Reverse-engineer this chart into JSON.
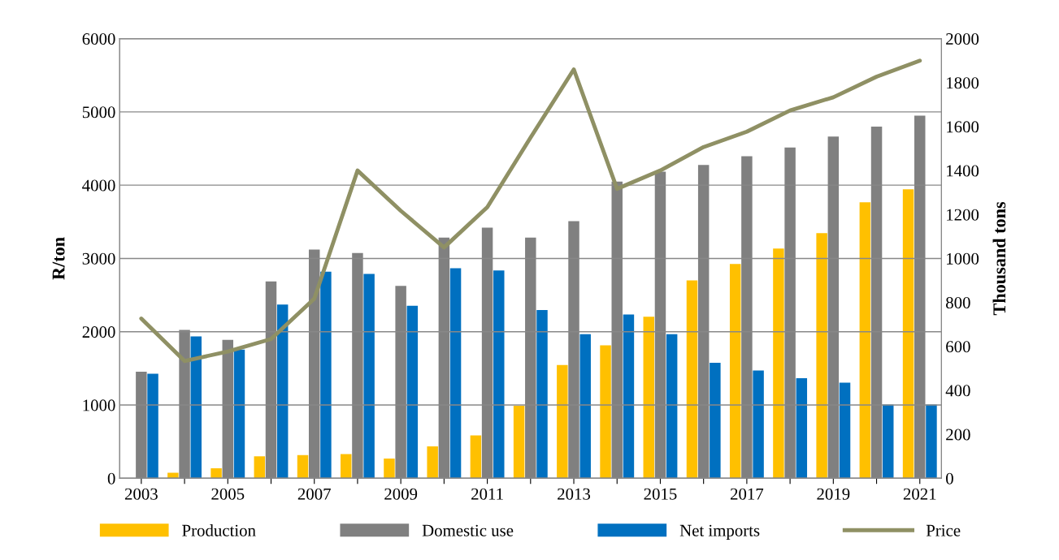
{
  "chart_data": {
    "type": "bar",
    "ylabel": "R/ton",
    "y2label": "Thousand tons",
    "categories": [
      "2003",
      null,
      "2005",
      null,
      "2007",
      null,
      "2009",
      null,
      "2011",
      null,
      "2013",
      null,
      "2015",
      null,
      "2017",
      null,
      "2019",
      null,
      "2021"
    ],
    "series": [
      {
        "name": "Production",
        "color": "#ffc000",
        "axis": "y2",
        "values": [
          0,
          25,
          45,
          100,
          105,
          110,
          90,
          145,
          195,
          330,
          515,
          605,
          735,
          900,
          975,
          1045,
          1115,
          1255,
          1315
        ]
      },
      {
        "name": "Domestic use",
        "color": "#808080",
        "axis": "y2",
        "values": [
          485,
          675,
          630,
          895,
          1040,
          1025,
          875,
          1095,
          1140,
          1095,
          1170,
          1350,
          1395,
          1425,
          1465,
          1505,
          1555,
          1600,
          1650
        ]
      },
      {
        "name": "Net imports",
        "color": "#0070c0",
        "axis": "y2",
        "values": [
          475,
          645,
          585,
          790,
          940,
          930,
          785,
          955,
          945,
          765,
          655,
          745,
          655,
          525,
          490,
          455,
          435,
          335,
          335
        ]
      },
      {
        "name": "Price",
        "type": "line",
        "color": "#8f9064",
        "axis": "y",
        "values": [
          2180,
          1600,
          1730,
          1900,
          2450,
          4200,
          3650,
          3150,
          3700,
          4650,
          5580,
          3950,
          4200,
          4520,
          4730,
          5020,
          5200,
          5480,
          5700
        ]
      }
    ],
    "ylim": [
      0,
      6000
    ],
    "yticks": [
      0,
      1000,
      2000,
      3000,
      4000,
      5000,
      6000
    ],
    "y2lim": [
      0,
      2000
    ],
    "y2ticks": [
      0,
      200,
      400,
      600,
      800,
      1000,
      1200,
      1400,
      1600,
      1800,
      2000
    ],
    "grid": "y",
    "legend": "bottom",
    "line_style": "solid",
    "marker": "none"
  }
}
